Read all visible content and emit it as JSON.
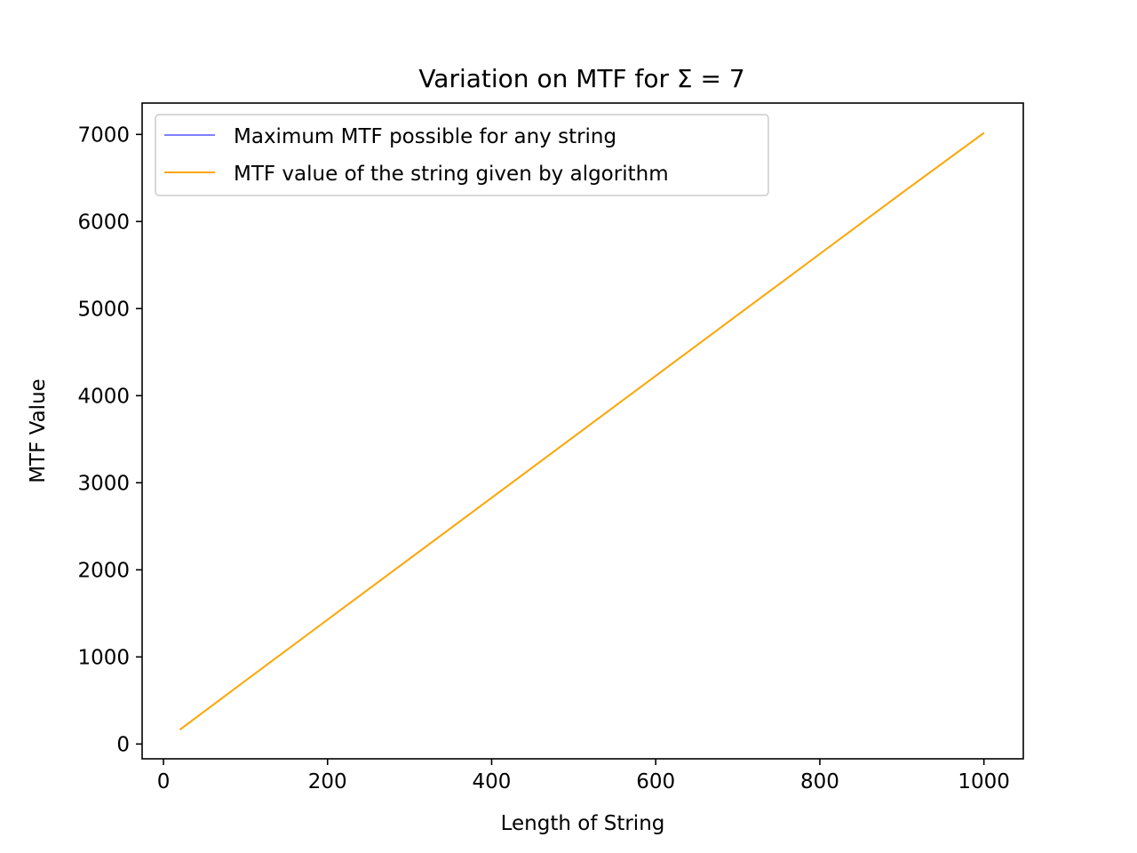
{
  "chart_data": {
    "type": "line",
    "title": "Variation on MTF for Σ = 7",
    "xlabel": "Length of String",
    "ylabel": "MTF Value",
    "xlim": [
      -26,
      1048
    ],
    "ylim": [
      -170,
      7360
    ],
    "xticks": [
      0,
      200,
      400,
      600,
      800,
      1000
    ],
    "yticks": [
      0,
      1000,
      2000,
      3000,
      4000,
      5000,
      6000,
      7000
    ],
    "grid": false,
    "legend_position": "top-left",
    "series": [
      {
        "name": "Maximum MTF possible for any string",
        "color": "#0000ff",
        "x": [
          20,
          100,
          200,
          300,
          400,
          500,
          600,
          700,
          800,
          900,
          1000
        ],
        "y": [
          168,
          730,
          1430,
          2130,
          2830,
          3530,
          4230,
          4930,
          5630,
          6330,
          7020
        ]
      },
      {
        "name": "MTF value of the string given by algorithm",
        "color": "#ffa500",
        "x": [
          20,
          100,
          200,
          300,
          400,
          500,
          600,
          700,
          800,
          900,
          1000
        ],
        "y": [
          165,
          728,
          1428,
          2128,
          2828,
          3528,
          4228,
          4928,
          5628,
          6328,
          7018
        ]
      }
    ]
  }
}
